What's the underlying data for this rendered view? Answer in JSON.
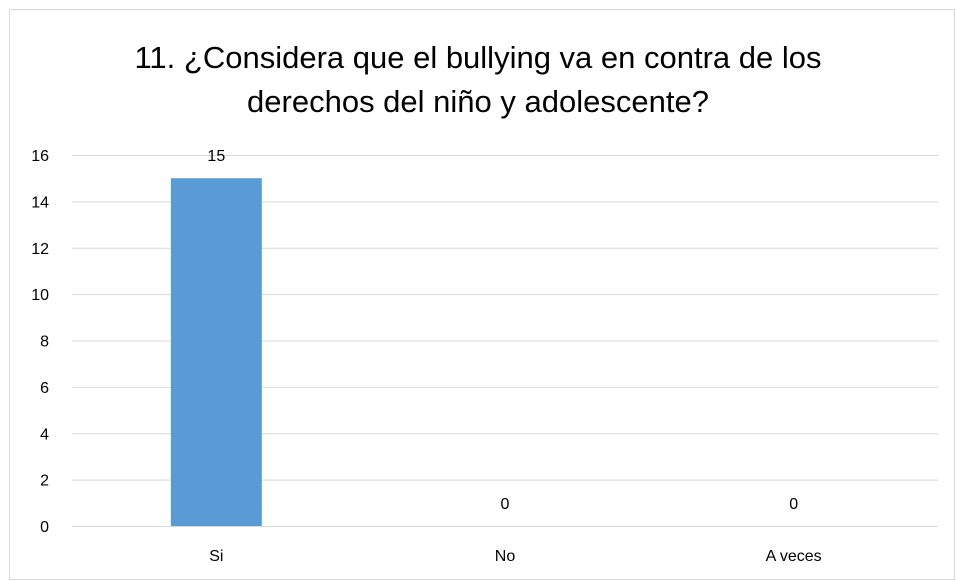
{
  "chart_data": {
    "type": "bar",
    "title_lines": [
      "11. ¿Considera que el bullying va en contra de los",
      "derechos del niño y adolescente?"
    ],
    "categories": [
      "Si",
      "No",
      "A veces"
    ],
    "values": [
      15,
      0,
      0
    ],
    "data_labels": [
      "15",
      "0",
      "0"
    ],
    "ylim": [
      0,
      16
    ],
    "yticks": [
      0,
      2,
      4,
      6,
      8,
      10,
      12,
      14,
      16
    ],
    "xlabel": "",
    "ylabel": "",
    "grid": true,
    "legend": false,
    "colors": {
      "bar": "#5b9bd5",
      "gridline": "#d9d9d9",
      "border": "#d9d9d9"
    }
  }
}
